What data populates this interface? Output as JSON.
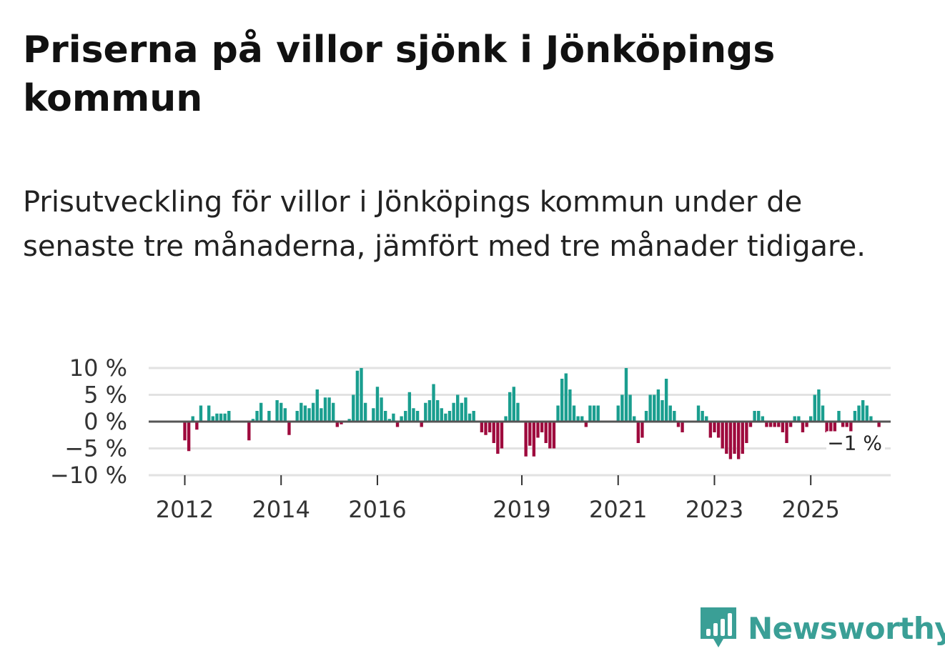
{
  "chart_data": {
    "type": "bar",
    "title": "Priserna på villor sjönk i Jönköpings kommun",
    "subtitle": "Prisutveckling för villor i Jönköpings kommun under de senaste tre månaderna, jämfört med tre månader tidigare.",
    "xlabel": "",
    "ylabel": "",
    "ylim": [
      -10,
      10
    ],
    "y_ticks": [
      10,
      5,
      0,
      -5,
      -10
    ],
    "y_tick_labels": [
      "10 %",
      "5 %",
      "0 %",
      "−5 %",
      "−10 %"
    ],
    "x_tick_labels": [
      "2012",
      "2014",
      "2016",
      "2019",
      "2021",
      "2023",
      "2025"
    ],
    "x_tick_positions": [
      2012,
      2014,
      2016,
      2019,
      2021,
      2023,
      2025
    ],
    "x_start": 2011.25,
    "x_end": 2026.66,
    "step": 0.0833333,
    "last_label": "−1 %",
    "positive_color": "#1a9e8f",
    "negative_color": "#9e0a3d",
    "values": [
      0,
      0,
      0,
      0,
      0,
      0,
      0,
      0,
      0,
      -3.5,
      -5.5,
      1,
      -1.5,
      3,
      0,
      3,
      1,
      1.5,
      1.5,
      1.5,
      2,
      0,
      0,
      0,
      0,
      -3.5,
      0.5,
      2,
      3.5,
      0,
      2,
      0,
      4,
      3.5,
      2.5,
      -2.5,
      0,
      2,
      3.5,
      3,
      2.5,
      3.5,
      6,
      2.5,
      4.5,
      4.5,
      3.5,
      -1,
      -0.5,
      0,
      0.5,
      5,
      9.5,
      10,
      3.5,
      0,
      2.5,
      6.5,
      4.5,
      2,
      0.5,
      1.5,
      -1,
      1,
      2,
      5.5,
      2.5,
      2,
      -1,
      3.5,
      4,
      7,
      4,
      2.5,
      1.5,
      2,
      3.5,
      5,
      3.5,
      4.5,
      1.5,
      2,
      0,
      -2,
      -2.5,
      -2,
      -4,
      -6,
      -5,
      1,
      5.5,
      6.5,
      3.5,
      0,
      -6.5,
      -4.5,
      -6.5,
      -3,
      -2,
      -4,
      -5,
      -5,
      3,
      8,
      9,
      6,
      3,
      1,
      1,
      -1,
      3,
      3,
      3,
      0,
      0,
      0,
      0,
      3,
      5,
      10,
      5,
      1,
      -4,
      -3,
      2,
      5,
      5,
      6,
      4,
      8,
      3,
      2,
      -1,
      -2,
      0,
      0,
      0,
      3,
      2,
      1,
      -3,
      -2,
      -3,
      -5,
      -6,
      -7,
      -6,
      -7,
      -6,
      -4,
      -1,
      2,
      2,
      1,
      -1,
      -1,
      -1,
      -1,
      -2,
      -4,
      -1,
      1,
      1,
      -2,
      -1,
      1,
      5,
      6,
      3,
      -2,
      -3,
      -2,
      2,
      -1,
      -1,
      -2,
      2,
      3,
      4,
      3,
      1,
      0,
      -1
    ]
  },
  "branding": {
    "name": "Newsworthy",
    "color": "#3a9f96"
  }
}
